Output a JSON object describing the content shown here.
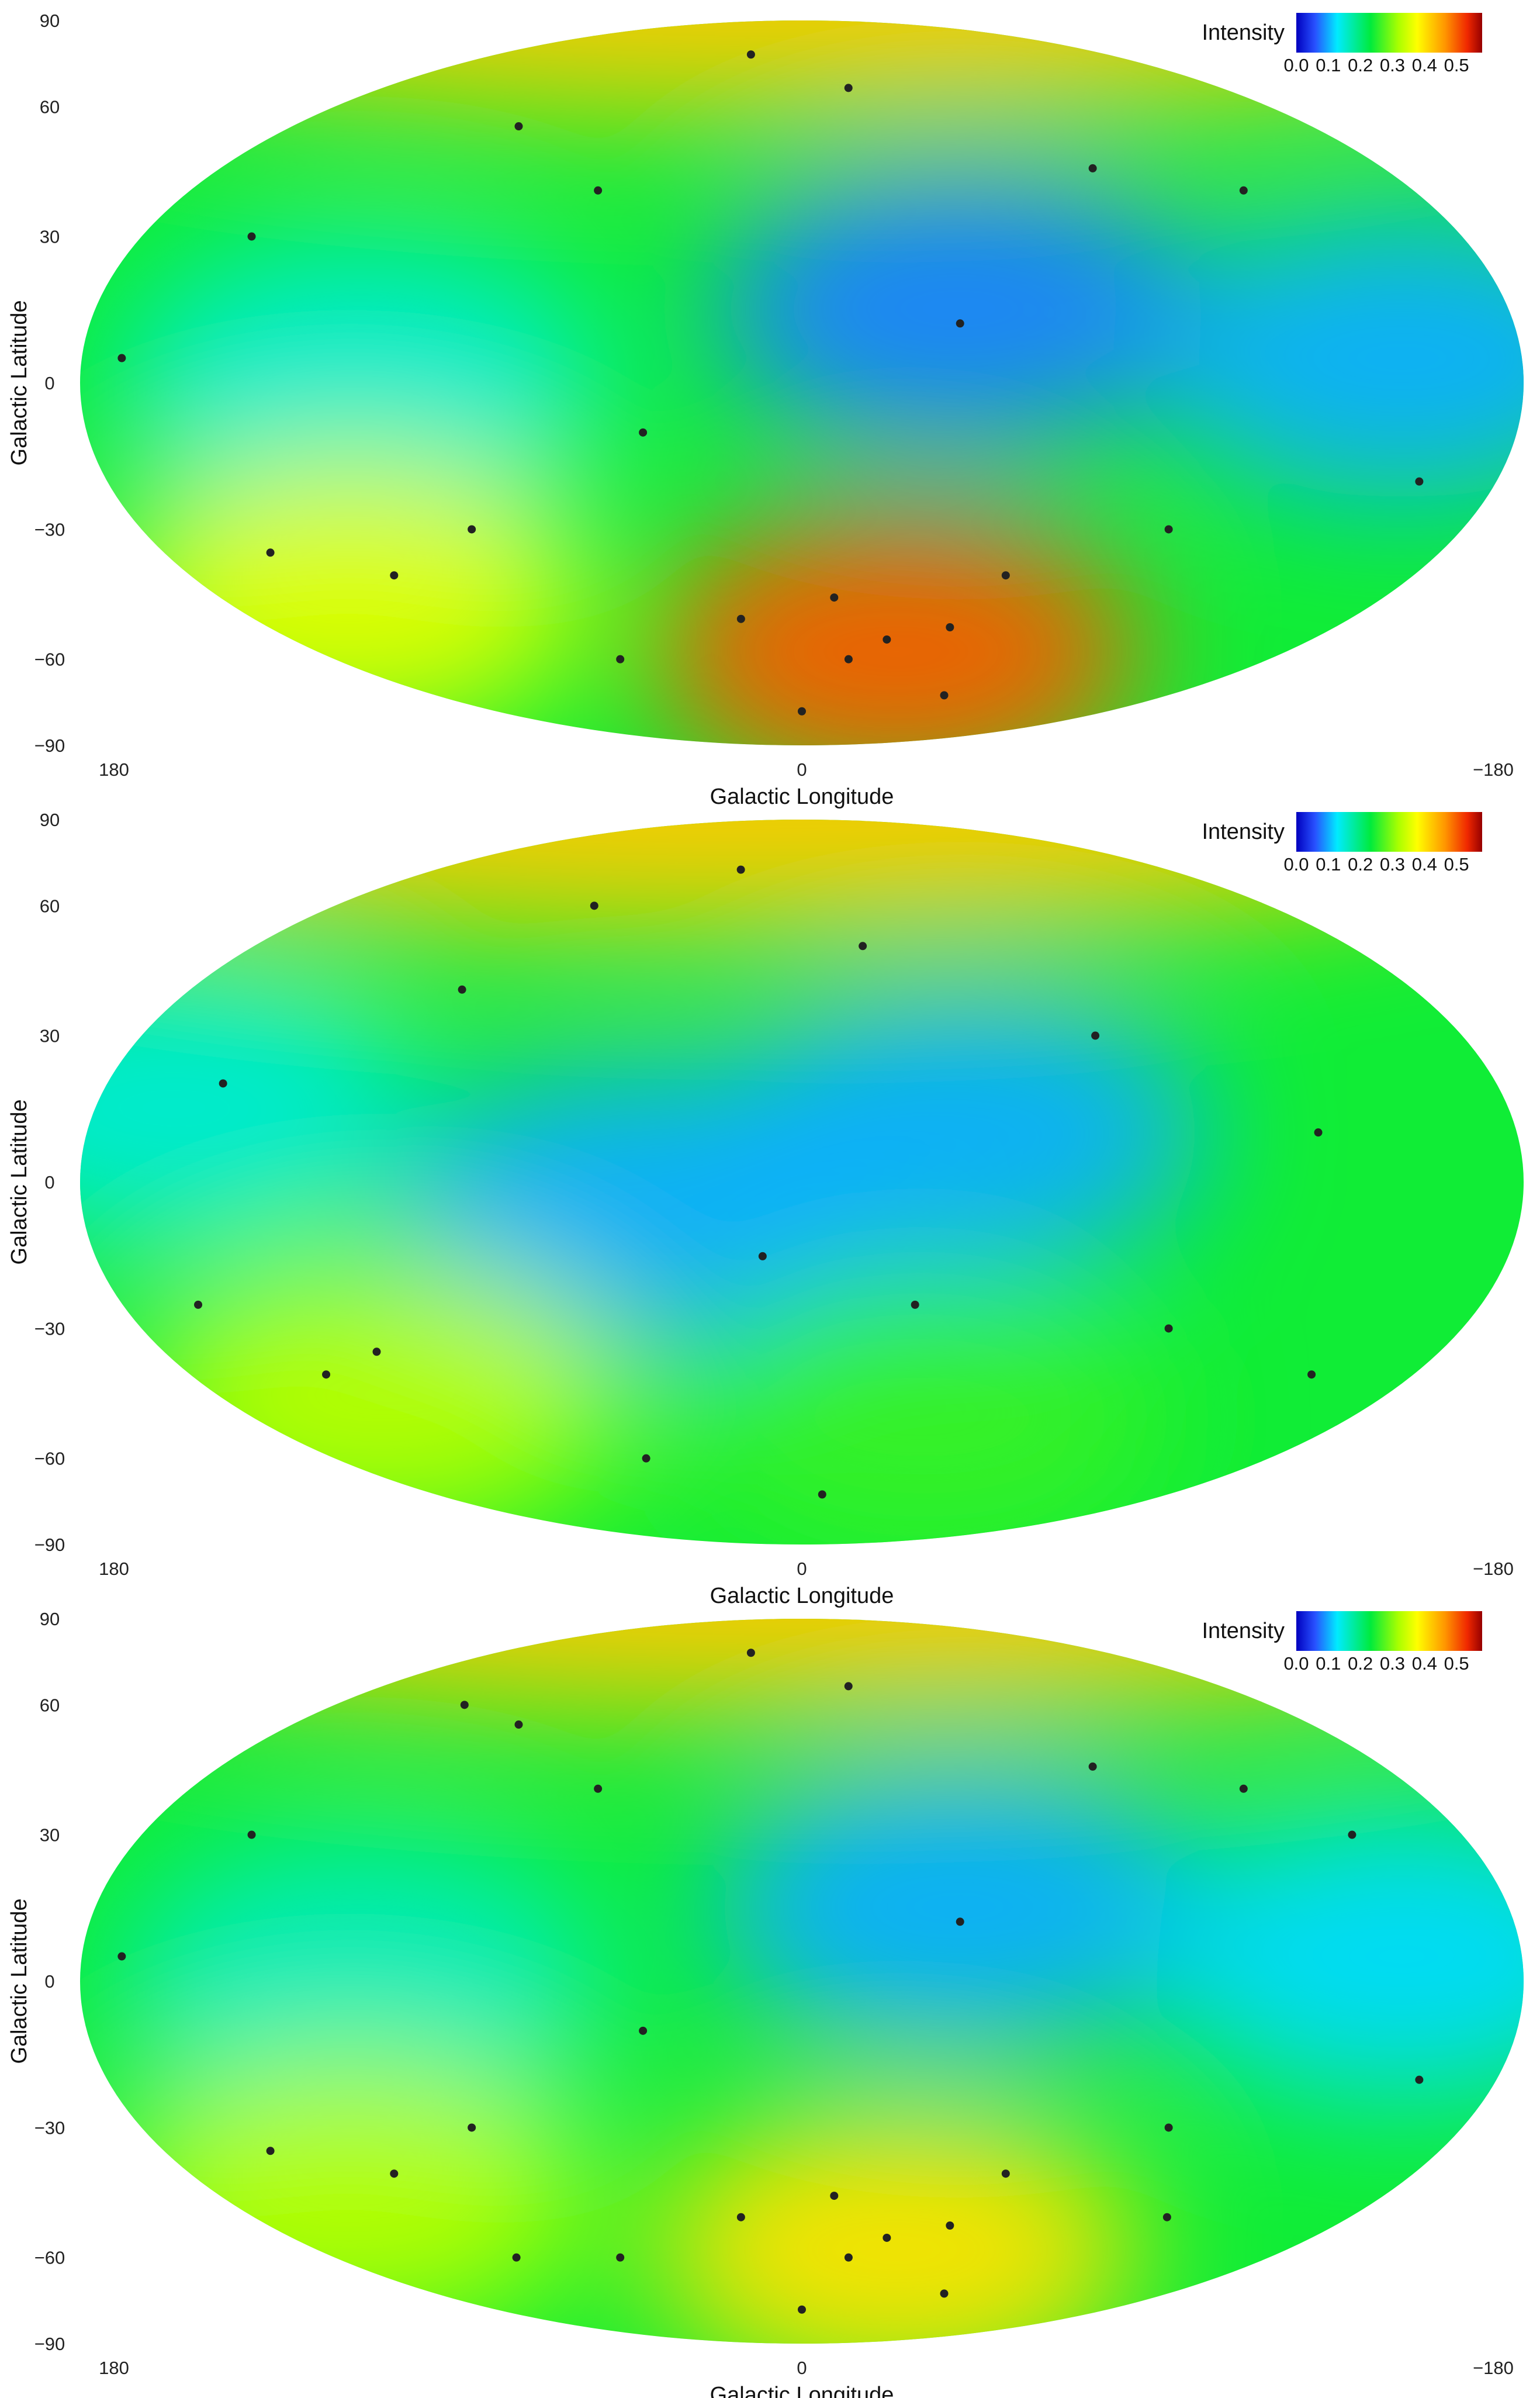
{
  "chart_data": [
    {
      "type": "heatmap",
      "projection": "mollweide",
      "title": "",
      "xlabel": "Galactic Longitude",
      "ylabel": "Galactic Latitude",
      "xlim": [
        180,
        -180
      ],
      "ylim": [
        -90,
        90
      ],
      "x_ticks": [
        "180",
        "0",
        "−180"
      ],
      "y_ticks": [
        "90",
        "60",
        "30",
        "0",
        "−30",
        "−60",
        "−90"
      ],
      "colorbar": {
        "title": "Intensity",
        "ticks": [
          "0.0",
          "0.1",
          "0.2",
          "0.3",
          "0.4",
          "0.5"
        ],
        "range": [
          0,
          0.58
        ]
      },
      "intensity_features": [
        {
          "lon": 0,
          "lat": 90,
          "value": 0.42
        },
        {
          "lon": -40,
          "lat": 15,
          "value": 0.08
        },
        {
          "lon": -150,
          "lat": 5,
          "value": 0.1
        },
        {
          "lon": 110,
          "lat": 0,
          "value": 0.15
        },
        {
          "lon": -35,
          "lat": -58,
          "value": 0.5
        },
        {
          "lon": 140,
          "lat": -45,
          "value": 0.36
        }
      ],
      "markers": [
        {
          "lon": -18,
          "lat": -60
        },
        {
          "lon": -30,
          "lat": -55
        },
        {
          "lon": -50,
          "lat": -52
        },
        {
          "lon": -10,
          "lat": -45
        },
        {
          "lon": 20,
          "lat": -50
        },
        {
          "lon": -60,
          "lat": -40
        },
        {
          "lon": 120,
          "lat": -40
        },
        {
          "lon": 150,
          "lat": -35
        },
        {
          "lon": 90,
          "lat": -30
        },
        {
          "lon": 60,
          "lat": 40
        },
        {
          "lon": 100,
          "lat": 55
        },
        {
          "lon": -20,
          "lat": 65
        },
        {
          "lon": 30,
          "lat": 75
        },
        {
          "lon": -90,
          "lat": 45
        },
        {
          "lon": -130,
          "lat": 40
        },
        {
          "lon": 150,
          "lat": 30
        },
        {
          "lon": -160,
          "lat": -20
        },
        {
          "lon": 170,
          "lat": 5
        },
        {
          "lon": -40,
          "lat": 12
        },
        {
          "lon": 40,
          "lat": -10
        },
        {
          "lon": -100,
          "lat": -30
        },
        {
          "lon": 0,
          "lat": -75
        },
        {
          "lon": -70,
          "lat": -70
        },
        {
          "lon": 70,
          "lat": -60
        }
      ]
    },
    {
      "type": "heatmap",
      "projection": "mollweide",
      "title": "",
      "xlabel": "Galactic Longitude",
      "ylabel": "Galactic Latitude",
      "xlim": [
        180,
        -180
      ],
      "ylim": [
        -90,
        90
      ],
      "x_ticks": [
        "180",
        "0",
        "−180"
      ],
      "y_ticks": [
        "90",
        "60",
        "30",
        "0",
        "−30",
        "−60",
        "−90"
      ],
      "colorbar": {
        "title": "Intensity",
        "ticks": [
          "0.0",
          "0.1",
          "0.2",
          "0.3",
          "0.4",
          "0.5"
        ],
        "range": [
          0,
          0.58
        ]
      },
      "intensity_features": [
        {
          "lon": 40,
          "lat": 80,
          "value": 0.42
        },
        {
          "lon": -40,
          "lat": 10,
          "value": 0.1
        },
        {
          "lon": 40,
          "lat": -5,
          "value": 0.1
        },
        {
          "lon": 160,
          "lat": 15,
          "value": 0.15
        },
        {
          "lon": 130,
          "lat": -45,
          "value": 0.33
        },
        {
          "lon": -40,
          "lat": -50,
          "value": 0.26
        }
      ],
      "markers": [
        {
          "lon": 140,
          "lat": -40
        },
        {
          "lon": 120,
          "lat": -35
        },
        {
          "lon": 160,
          "lat": -25
        },
        {
          "lon": 150,
          "lat": 20
        },
        {
          "lon": 10,
          "lat": -15
        },
        {
          "lon": -30,
          "lat": -25
        },
        {
          "lon": 30,
          "lat": 70
        },
        {
          "lon": 80,
          "lat": 60
        },
        {
          "lon": -20,
          "lat": 50
        },
        {
          "lon": -80,
          "lat": 30
        },
        {
          "lon": -130,
          "lat": 10
        },
        {
          "lon": -100,
          "lat": -30
        },
        {
          "lon": 60,
          "lat": -60
        },
        {
          "lon": -10,
          "lat": -70
        },
        {
          "lon": 100,
          "lat": 40
        },
        {
          "lon": -150,
          "lat": -40
        }
      ]
    },
    {
      "type": "heatmap",
      "projection": "mollweide",
      "title": "",
      "xlabel": "Galactic Longitude",
      "ylabel": "Galactic Latitude",
      "xlim": [
        180,
        -180
      ],
      "ylim": [
        -90,
        90
      ],
      "x_ticks": [
        "180",
        "0",
        "−180"
      ],
      "y_ticks": [
        "90",
        "60",
        "30",
        "0",
        "−30",
        "−60",
        "−90"
      ],
      "colorbar": {
        "title": "Intensity",
        "ticks": [
          "0.0",
          "0.1",
          "0.2",
          "0.3",
          "0.4",
          "0.5"
        ],
        "range": [
          0,
          0.58
        ]
      },
      "intensity_features": [
        {
          "lon": 0,
          "lat": 90,
          "value": 0.42
        },
        {
          "lon": -40,
          "lat": 15,
          "value": 0.1
        },
        {
          "lon": -150,
          "lat": 5,
          "value": 0.12
        },
        {
          "lon": 110,
          "lat": 0,
          "value": 0.16
        },
        {
          "lon": -35,
          "lat": -58,
          "value": 0.4
        },
        {
          "lon": 140,
          "lat": -45,
          "value": 0.33
        }
      ],
      "markers": [
        {
          "lon": -18,
          "lat": -60
        },
        {
          "lon": -30,
          "lat": -55
        },
        {
          "lon": -50,
          "lat": -52
        },
        {
          "lon": -10,
          "lat": -45
        },
        {
          "lon": 20,
          "lat": -50
        },
        {
          "lon": -60,
          "lat": -40
        },
        {
          "lon": 120,
          "lat": -40
        },
        {
          "lon": 150,
          "lat": -35
        },
        {
          "lon": 90,
          "lat": -30
        },
        {
          "lon": 60,
          "lat": 40
        },
        {
          "lon": 100,
          "lat": 55
        },
        {
          "lon": -20,
          "lat": 65
        },
        {
          "lon": 30,
          "lat": 75
        },
        {
          "lon": -90,
          "lat": 45
        },
        {
          "lon": -130,
          "lat": 40
        },
        {
          "lon": 150,
          "lat": 30
        },
        {
          "lon": -160,
          "lat": -20
        },
        {
          "lon": 170,
          "lat": 5
        },
        {
          "lon": -40,
          "lat": 12
        },
        {
          "lon": 40,
          "lat": -10
        },
        {
          "lon": -100,
          "lat": -30
        },
        {
          "lon": 0,
          "lat": -75
        },
        {
          "lon": -70,
          "lat": -70
        },
        {
          "lon": 70,
          "lat": -60
        },
        {
          "lon": 130,
          "lat": 60
        },
        {
          "lon": -150,
          "lat": 30
        },
        {
          "lon": 110,
          "lat": -60
        },
        {
          "lon": -120,
          "lat": -50
        }
      ]
    }
  ]
}
